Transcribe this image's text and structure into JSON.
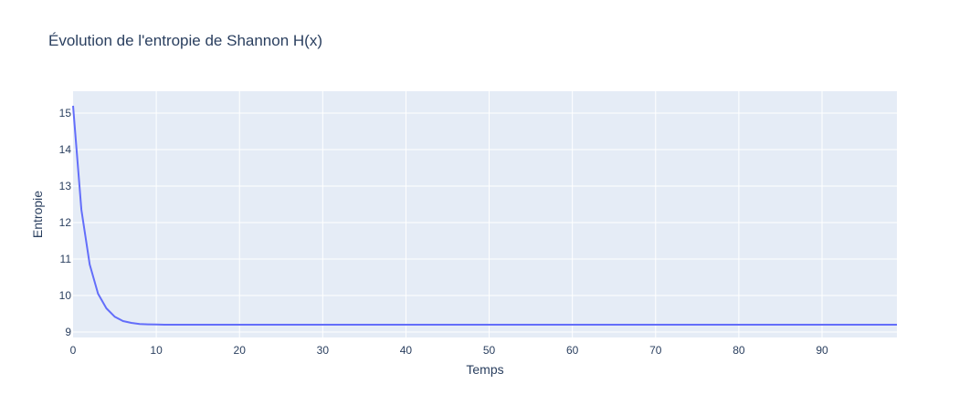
{
  "chart_data": {
    "type": "line",
    "title": "Évolution de l'entropie de Shannon H(x)",
    "xlabel": "Temps",
    "ylabel": "Entropie",
    "xlim": [
      0,
      99
    ],
    "ylim": [
      8.85,
      15.6
    ],
    "grid": true,
    "x_ticks": [
      0,
      10,
      20,
      30,
      40,
      50,
      60,
      70,
      80,
      90
    ],
    "y_ticks": [
      9,
      10,
      11,
      12,
      13,
      14,
      15
    ],
    "colors": {
      "line": "#636efa",
      "plot_bg": "#e5ecf6",
      "grid": "#ffffff",
      "text": "#2a3f5f"
    },
    "series": [
      {
        "x": [
          0,
          1,
          2,
          3,
          4,
          5,
          6,
          7,
          8,
          9,
          10,
          11,
          12,
          15,
          20,
          30,
          40,
          50,
          60,
          70,
          80,
          90,
          99
        ],
        "y": [
          15.2,
          12.35,
          10.85,
          10.05,
          9.65,
          9.42,
          9.3,
          9.25,
          9.22,
          9.21,
          9.205,
          9.2,
          9.2,
          9.2,
          9.2,
          9.2,
          9.2,
          9.2,
          9.2,
          9.2,
          9.2,
          9.2,
          9.2
        ]
      }
    ]
  }
}
